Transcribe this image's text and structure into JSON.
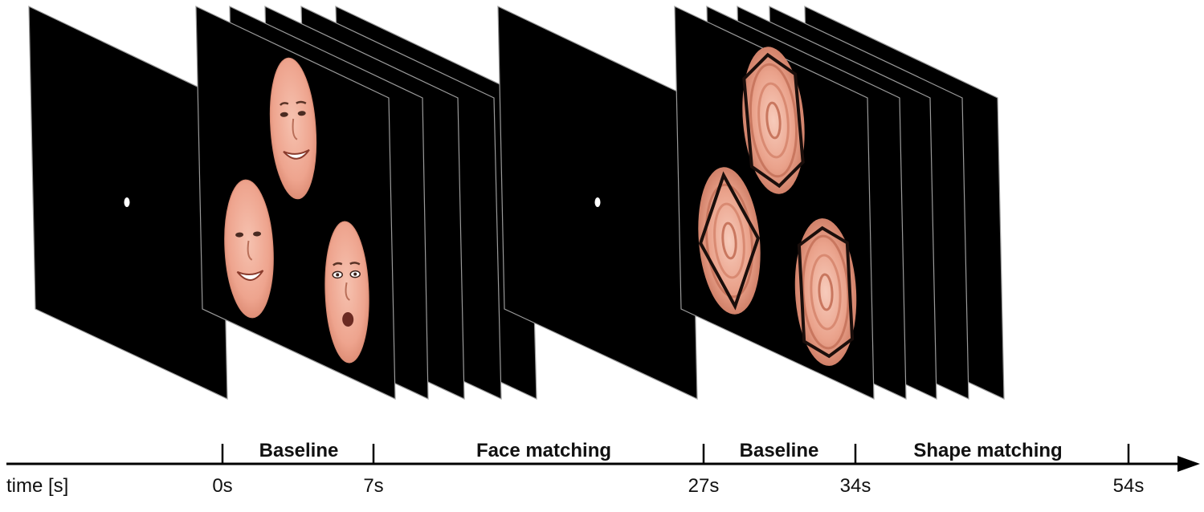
{
  "colors": {
    "slide": "#000000",
    "slide_edge": "#9a9a9a",
    "skin": "#f0a894",
    "skin_shade": "#d88a73",
    "timeline": "#000000",
    "fixation": "#ffffff"
  },
  "timeline": {
    "axis_label": "time [s]",
    "ticks": [
      "0s",
      "7s",
      "27s",
      "34s",
      "54s"
    ],
    "phases": [
      "Baseline",
      "Face matching",
      "Baseline",
      "Shape matching"
    ]
  },
  "stimuli": {
    "fixation_icon": "fixation-dot-icon",
    "face_icon": "face-icon",
    "shape_icon": "spiral-shape-icon"
  }
}
